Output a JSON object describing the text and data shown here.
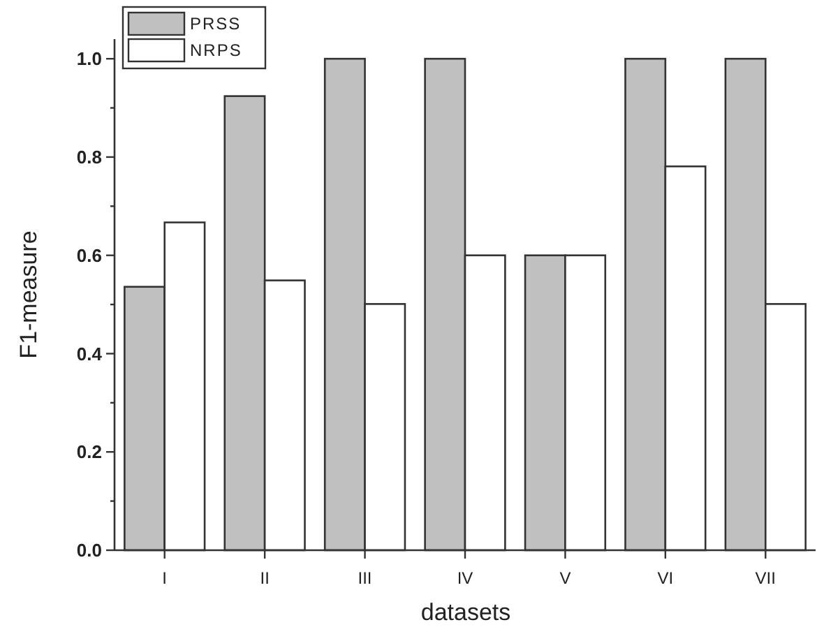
{
  "chart_data": {
    "type": "bar",
    "xlabel": "datasets",
    "ylabel": "F1-measure",
    "categories": [
      "I",
      "II",
      "III",
      "IV",
      "V",
      "VI",
      "VII"
    ],
    "series": [
      {
        "name": "PRSS",
        "color": "#c0c0c0",
        "values": [
          0.536,
          0.924,
          1.0,
          1.0,
          0.6,
          1.0,
          1.0
        ]
      },
      {
        "name": "NRPS",
        "color": "#ffffff",
        "values": [
          0.667,
          0.549,
          0.501,
          0.6,
          0.6,
          0.781,
          0.501
        ]
      }
    ],
    "ylim": [
      0,
      1.04
    ],
    "yticks": [
      {
        "value": 0,
        "label": "0.0"
      },
      {
        "value": 0.1,
        "label": null
      },
      0.2,
      {
        "value": 0.3,
        "label": null
      },
      0.4,
      {
        "value": 0.5,
        "label": null
      },
      0.6,
      {
        "value": 0.7,
        "label": null
      },
      0.8,
      {
        "value": 0.9,
        "label": null
      },
      {
        "value": 1,
        "label": "1.0"
      }
    ],
    "grid": false,
    "legend": "top left"
  }
}
